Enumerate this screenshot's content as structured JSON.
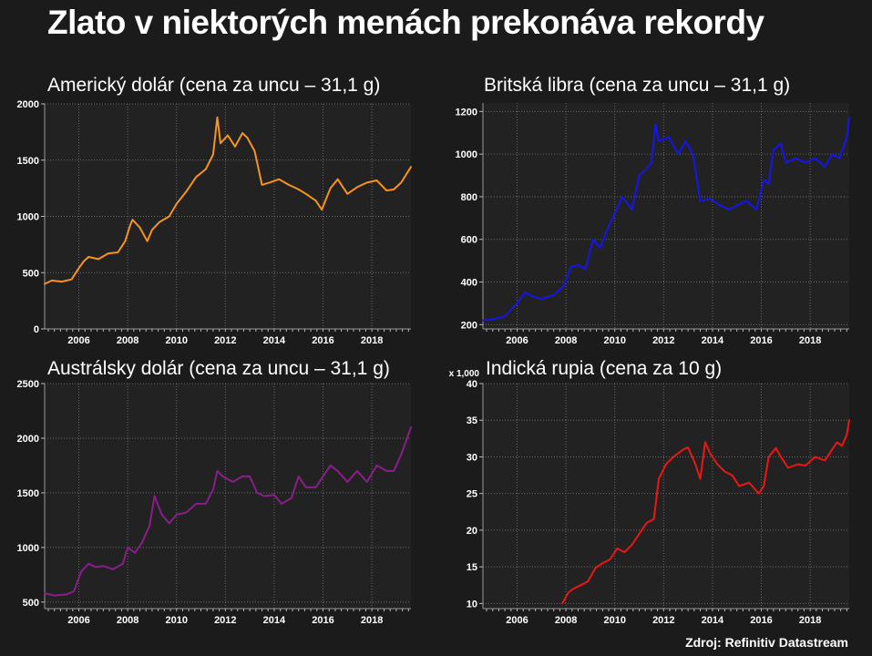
{
  "title": "Zlato v niektorých menách prekonáva rekordy",
  "source": "Zdroj: Refinitiv Datastream",
  "chart_data": [
    {
      "type": "line",
      "title": "Americký dolár (cena za uncu – 31,1 g)",
      "color": "#f7931e",
      "xlim": [
        2004.6,
        2019.6
      ],
      "ylim": [
        0,
        2000
      ],
      "x_ticks": [
        "2006",
        "2008",
        "2010",
        "2012",
        "2014",
        "2016",
        "2018"
      ],
      "y_ticks": [
        "0",
        "500",
        "1000",
        "1500",
        "2000"
      ],
      "grid": true,
      "x": [
        2004.6,
        2004.9,
        2005.3,
        2005.7,
        2006.0,
        2006.2,
        2006.4,
        2006.8,
        2007.2,
        2007.6,
        2007.9,
        2008.1,
        2008.2,
        2008.5,
        2008.8,
        2009.0,
        2009.3,
        2009.7,
        2010.0,
        2010.4,
        2010.8,
        2011.2,
        2011.5,
        2011.67,
        2011.8,
        2012.1,
        2012.4,
        2012.7,
        2012.9,
        2013.2,
        2013.5,
        2013.8,
        2014.2,
        2014.6,
        2015.0,
        2015.3,
        2015.7,
        2015.95,
        2016.3,
        2016.6,
        2017.0,
        2017.4,
        2017.8,
        2018.2,
        2018.6,
        2018.9,
        2019.2,
        2019.6
      ],
      "y": [
        400,
        430,
        420,
        440,
        540,
        600,
        640,
        620,
        670,
        680,
        780,
        920,
        970,
        900,
        780,
        880,
        950,
        1000,
        1110,
        1220,
        1350,
        1420,
        1550,
        1880,
        1650,
        1720,
        1620,
        1740,
        1700,
        1580,
        1280,
        1300,
        1330,
        1280,
        1240,
        1200,
        1140,
        1060,
        1250,
        1330,
        1200,
        1260,
        1300,
        1320,
        1230,
        1240,
        1300,
        1440
      ]
    },
    {
      "type": "line",
      "title": "Britská libra (cena za uncu – 31,1 g)",
      "color": "#1515ee",
      "xlim": [
        2004.6,
        2019.6
      ],
      "ylim": [
        180,
        1240
      ],
      "x_ticks": [
        "2006",
        "2008",
        "2010",
        "2012",
        "2014",
        "2016",
        "2018"
      ],
      "y_ticks": [
        "200",
        "400",
        "600",
        "800",
        "1000",
        "1200"
      ],
      "grid": true,
      "x": [
        2004.6,
        2005.0,
        2005.5,
        2006.0,
        2006.3,
        2006.7,
        2007.0,
        2007.5,
        2007.9,
        2008.2,
        2008.5,
        2008.8,
        2009.1,
        2009.4,
        2009.7,
        2010.0,
        2010.3,
        2010.7,
        2011.0,
        2011.3,
        2011.5,
        2011.67,
        2011.8,
        2012.2,
        2012.6,
        2012.9,
        2013.2,
        2013.5,
        2013.9,
        2014.3,
        2014.7,
        2015.0,
        2015.4,
        2015.8,
        2016.1,
        2016.3,
        2016.5,
        2016.8,
        2017.0,
        2017.4,
        2017.8,
        2018.2,
        2018.6,
        2018.9,
        2019.2,
        2019.5,
        2019.6
      ],
      "y": [
        220,
        225,
        240,
        300,
        350,
        330,
        320,
        340,
        380,
        470,
        480,
        460,
        600,
        560,
        650,
        720,
        800,
        740,
        900,
        930,
        960,
        1140,
        1060,
        1080,
        1000,
        1060,
        1000,
        780,
        790,
        760,
        740,
        760,
        780,
        740,
        880,
        860,
        1020,
        1050,
        960,
        980,
        960,
        980,
        940,
        1000,
        980,
        1080,
        1170
      ]
    },
    {
      "type": "line",
      "title": "Austrálsky dolár (cena za uncu – 31,1 g)",
      "color": "#8a1e8a",
      "xlim": [
        2004.6,
        2019.6
      ],
      "ylim": [
        440,
        2500
      ],
      "x_ticks": [
        "2006",
        "2008",
        "2010",
        "2012",
        "2014",
        "2016",
        "2018"
      ],
      "y_ticks": [
        "500",
        "1000",
        "1500",
        "2000",
        "2500"
      ],
      "grid": true,
      "x": [
        2004.6,
        2005.0,
        2005.5,
        2005.8,
        2006.1,
        2006.4,
        2006.7,
        2007.0,
        2007.4,
        2007.8,
        2008.0,
        2008.3,
        2008.6,
        2008.9,
        2009.1,
        2009.4,
        2009.7,
        2010.0,
        2010.4,
        2010.8,
        2011.2,
        2011.5,
        2011.67,
        2011.9,
        2012.3,
        2012.7,
        2013.0,
        2013.3,
        2013.6,
        2014.0,
        2014.3,
        2014.7,
        2015.0,
        2015.3,
        2015.7,
        2016.0,
        2016.3,
        2016.6,
        2017.0,
        2017.4,
        2017.8,
        2018.2,
        2018.6,
        2018.9,
        2019.2,
        2019.6
      ],
      "y": [
        580,
        560,
        570,
        600,
        780,
        850,
        820,
        830,
        800,
        850,
        1000,
        950,
        1050,
        1200,
        1470,
        1300,
        1220,
        1300,
        1320,
        1400,
        1400,
        1530,
        1700,
        1650,
        1600,
        1650,
        1650,
        1500,
        1470,
        1480,
        1400,
        1450,
        1650,
        1550,
        1550,
        1650,
        1750,
        1700,
        1600,
        1700,
        1600,
        1750,
        1700,
        1700,
        1850,
        2100
      ]
    },
    {
      "type": "line",
      "title": "Indická rupia (cena za 10 g)",
      "color": "#ee1515",
      "y_multiplier": "x 1,000",
      "xlim": [
        2004.6,
        2019.6
      ],
      "ylim": [
        9.3,
        40
      ],
      "x_ticks": [
        "2006",
        "2008",
        "2010",
        "2012",
        "2014",
        "2016",
        "2018"
      ],
      "y_ticks": [
        "10",
        "15",
        "20",
        "25",
        "30",
        "35",
        "40"
      ],
      "grid": true,
      "x": [
        2007.85,
        2008.1,
        2008.3,
        2008.6,
        2008.9,
        2009.2,
        2009.5,
        2009.8,
        2010.1,
        2010.4,
        2010.7,
        2011.0,
        2011.3,
        2011.6,
        2011.8,
        2012.1,
        2012.4,
        2012.8,
        2013.0,
        2013.3,
        2013.5,
        2013.7,
        2013.9,
        2014.2,
        2014.5,
        2014.8,
        2015.1,
        2015.5,
        2015.9,
        2016.1,
        2016.3,
        2016.6,
        2016.8,
        2017.1,
        2017.5,
        2017.8,
        2018.2,
        2018.6,
        2018.9,
        2019.1,
        2019.3,
        2019.5,
        2019.6
      ],
      "y": [
        10,
        11.5,
        12,
        12.5,
        13,
        14.8,
        15.5,
        16,
        17.5,
        17,
        18,
        19.5,
        21,
        21.5,
        27,
        29,
        30,
        31,
        31.3,
        29,
        27,
        32,
        30.5,
        29,
        28,
        27.5,
        26,
        26.5,
        25,
        26,
        30,
        31.2,
        30,
        28.5,
        29,
        28.8,
        30,
        29.5,
        31,
        32,
        31.5,
        33,
        35
      ]
    }
  ]
}
